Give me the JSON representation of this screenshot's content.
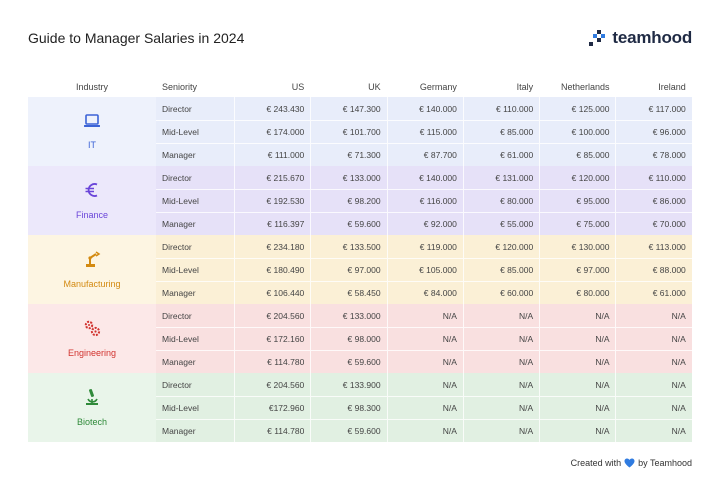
{
  "title": "Guide to Manager Salaries in 2024",
  "logo": {
    "text": "teamhood",
    "icon": "teamhood-logo-icon"
  },
  "headers": {
    "industry": "Industry",
    "seniority": "Seniority",
    "countries": [
      "US",
      "UK",
      "Germany",
      "Italy",
      "Netherlands",
      "Ireland"
    ]
  },
  "groups": [
    {
      "name": "IT",
      "icon": "laptop-icon",
      "color": "#3b63d6",
      "rows": [
        {
          "seniority": "Director",
          "values": [
            "€ 243.430",
            "€ 147.300",
            "€ 140.000",
            "€ 110.000",
            "€ 125.000",
            "€ 117.000"
          ]
        },
        {
          "seniority": "Mid-Level",
          "values": [
            "€ 174.000",
            "€ 101.700",
            "€ 115.000",
            "€ 85.000",
            "€ 100.000",
            "€ 96.000"
          ]
        },
        {
          "seniority": "Manager",
          "values": [
            "€ 111.000",
            "€ 71.300",
            "€ 87.700",
            "€ 61.000",
            "€ 85.000",
            "€ 78.000"
          ]
        }
      ]
    },
    {
      "name": "Finance",
      "icon": "euro-icon",
      "color": "#6a45d9",
      "rows": [
        {
          "seniority": "Director",
          "values": [
            "€ 215.670",
            "€ 133.000",
            "€ 140.000",
            "€ 131.000",
            "€ 120.000",
            "€ 110.000"
          ]
        },
        {
          "seniority": "Mid-Level",
          "values": [
            "€ 192.530",
            "€ 98.200",
            "€ 116.000",
            "€ 80.000",
            "€ 95.000",
            "€ 86.000"
          ]
        },
        {
          "seniority": "Manager",
          "values": [
            "€ 116.397",
            "€ 59.600",
            "€ 92.000",
            "€ 55.000",
            "€ 75.000",
            "€ 70.000"
          ]
        }
      ]
    },
    {
      "name": "Manufacturing",
      "icon": "robot-arm-icon",
      "color": "#d38a11",
      "rows": [
        {
          "seniority": "Director",
          "values": [
            "€ 234.180",
            "€ 133.500",
            "€ 119.000",
            "€ 120.000",
            "€ 130.000",
            "€ 113.000"
          ]
        },
        {
          "seniority": "Mid-Level",
          "values": [
            "€ 180.490",
            "€ 97.000",
            "€ 105.000",
            "€ 85.000",
            "€ 97.000",
            "€ 88.000"
          ]
        },
        {
          "seniority": "Manager",
          "values": [
            "€ 106.440",
            "€ 58.450",
            "€ 84.000",
            "€ 60.000",
            "€ 80.000",
            "€ 61.000"
          ]
        }
      ]
    },
    {
      "name": "Engineering",
      "icon": "gears-icon",
      "color": "#d1332f",
      "rows": [
        {
          "seniority": "Director",
          "values": [
            "€ 204.560",
            "€ 133.000",
            "N/A",
            "N/A",
            "N/A",
            "N/A"
          ]
        },
        {
          "seniority": "Mid-Level",
          "values": [
            "€ 172.160",
            "€ 98.000",
            "N/A",
            "N/A",
            "N/A",
            "N/A"
          ]
        },
        {
          "seniority": "Manager",
          "values": [
            "€ 114.780",
            "€ 59.600",
            "N/A",
            "N/A",
            "N/A",
            "N/A"
          ]
        }
      ]
    },
    {
      "name": "Biotech",
      "icon": "microscope-icon",
      "color": "#2f8a3a",
      "rows": [
        {
          "seniority": "Director",
          "values": [
            "€ 204.560",
            "€ 133.900",
            "N/A",
            "N/A",
            "N/A",
            "N/A"
          ]
        },
        {
          "seniority": "Mid-Level",
          "values": [
            "€172.960",
            "€ 98.300",
            "N/A",
            "N/A",
            "N/A",
            "N/A"
          ]
        },
        {
          "seniority": "Manager",
          "values": [
            "€ 114.780",
            "€ 59.600",
            "N/A",
            "N/A",
            "N/A",
            "N/A"
          ]
        }
      ]
    }
  ],
  "footer": {
    "prefix": "Created with",
    "suffix": "by Teamhood",
    "icon": "heart-icon",
    "heart_color": "#2f7be0"
  }
}
